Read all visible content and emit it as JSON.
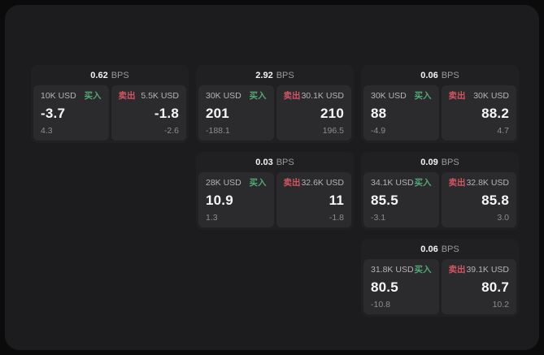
{
  "colors": {
    "outer_background": "#0b0b0c",
    "panel_background": "#1c1c1e",
    "card_background": "#202022",
    "subpanel_background": "#2b2b2d",
    "buy_green": "#53a877",
    "sell_red": "#d45563",
    "primary_text": "#f4f4f4",
    "secondary_text": "#9a9a9a"
  },
  "cards": [
    {
      "bps": "0.62",
      "bps_unit": "BPS",
      "buy": {
        "amount": "10K USD",
        "label": "买入",
        "value": "-3.7",
        "change": "4.3"
      },
      "sell": {
        "label": "卖出",
        "amount": "5.5K USD",
        "value": "-1.8",
        "change": "-2.6"
      }
    },
    {
      "bps": "2.92",
      "bps_unit": "BPS",
      "buy": {
        "amount": "30K USD",
        "label": "买入",
        "value": "201",
        "change": "-188.1"
      },
      "sell": {
        "label": "卖出",
        "amount": "30.1K USD",
        "value": "210",
        "change": "196.5"
      }
    },
    {
      "bps": "0.06",
      "bps_unit": "BPS",
      "buy": {
        "amount": "30K USD",
        "label": "买入",
        "value": "88",
        "change": "-4.9"
      },
      "sell": {
        "label": "卖出",
        "amount": "30K USD",
        "value": "88.2",
        "change": "4.7"
      }
    },
    {
      "bps": "0.03",
      "bps_unit": "BPS",
      "buy": {
        "amount": "28K USD",
        "label": "买入",
        "value": "10.9",
        "change": "1.3"
      },
      "sell": {
        "label": "卖出",
        "amount": "32.6K USD",
        "value": "11",
        "change": "-1.8"
      }
    },
    {
      "bps": "0.09",
      "bps_unit": "BPS",
      "buy": {
        "amount": "34.1K USD",
        "label": "买入",
        "value": "85.5",
        "change": "-3.1"
      },
      "sell": {
        "label": "卖出",
        "amount": "32.8K USD",
        "value": "85.8",
        "change": "3.0"
      }
    },
    {
      "bps": "0.06",
      "bps_unit": "BPS",
      "buy": {
        "amount": "31.8K USD",
        "label": "买入",
        "value": "80.5",
        "change": "-10.8"
      },
      "sell": {
        "label": "卖出",
        "amount": "39.1K USD",
        "value": "80.7",
        "change": "10.2"
      }
    }
  ]
}
